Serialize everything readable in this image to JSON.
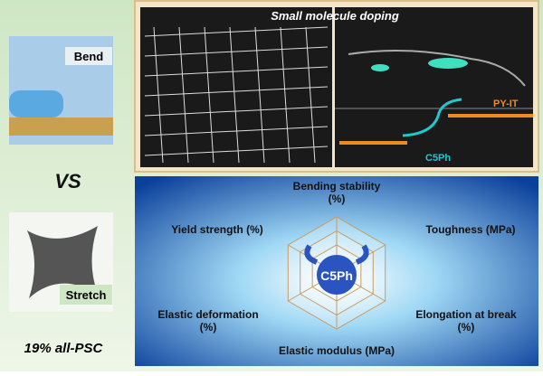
{
  "photos": {
    "bend_label": "Bend",
    "vs": "VS",
    "stretch_label": "Stretch",
    "caption": "19% all-PSC"
  },
  "top_panel": {
    "title": "Small molecule doping",
    "polymer_label": "PY-IT",
    "dopant_label": "C5Ph"
  },
  "radar": {
    "center_label": "C5Ph",
    "axes": [
      [
        "Bending stability",
        "(%)"
      ],
      [
        "Toughness (MPa)"
      ],
      [
        "Elongation at break",
        "(%)"
      ],
      [
        "Elastic modulus (MPa)"
      ],
      [
        "Elastic deformation",
        "(%)"
      ],
      [
        "Yield strength (%)"
      ]
    ]
  }
}
